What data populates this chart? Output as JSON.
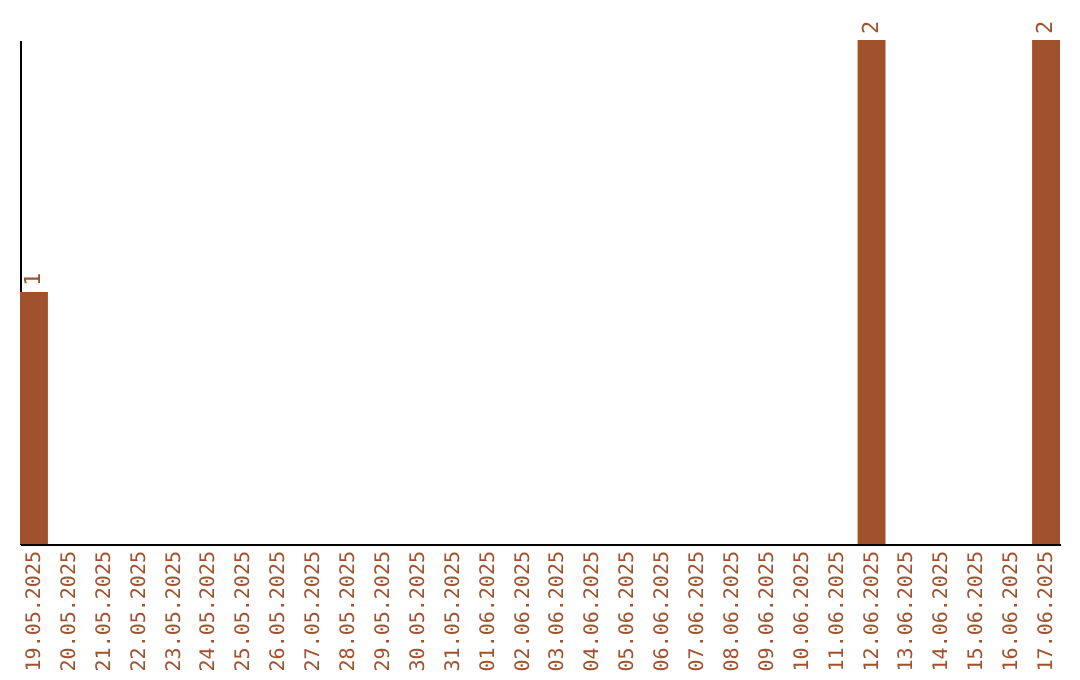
{
  "chart_data": {
    "type": "bar",
    "categories": [
      "19.05.2025",
      "20.05.2025",
      "21.05.2025",
      "22.05.2025",
      "23.05.2025",
      "24.05.2025",
      "25.05.2025",
      "26.05.2025",
      "27.05.2025",
      "28.05.2025",
      "29.05.2025",
      "30.05.2025",
      "31.05.2025",
      "01.06.2025",
      "02.06.2025",
      "03.06.2025",
      "04.06.2025",
      "05.06.2025",
      "06.06.2025",
      "07.06.2025",
      "08.06.2025",
      "09.06.2025",
      "10.06.2025",
      "11.06.2025",
      "12.06.2025",
      "13.06.2025",
      "14.06.2025",
      "15.06.2025",
      "16.06.2025",
      "17.06.2025"
    ],
    "values": [
      1,
      0,
      0,
      0,
      0,
      0,
      0,
      0,
      0,
      0,
      0,
      0,
      0,
      0,
      0,
      0,
      0,
      0,
      0,
      0,
      0,
      0,
      0,
      0,
      2,
      0,
      0,
      0,
      0,
      2
    ],
    "value_labels": [
      "1",
      null,
      null,
      null,
      null,
      null,
      null,
      null,
      null,
      null,
      null,
      null,
      null,
      null,
      null,
      null,
      null,
      null,
      null,
      null,
      null,
      null,
      null,
      null,
      "2",
      null,
      null,
      null,
      null,
      "2"
    ],
    "color": "#a0522d",
    "ylim": [
      0,
      2
    ],
    "tick_labels": "x",
    "grid": false
  }
}
